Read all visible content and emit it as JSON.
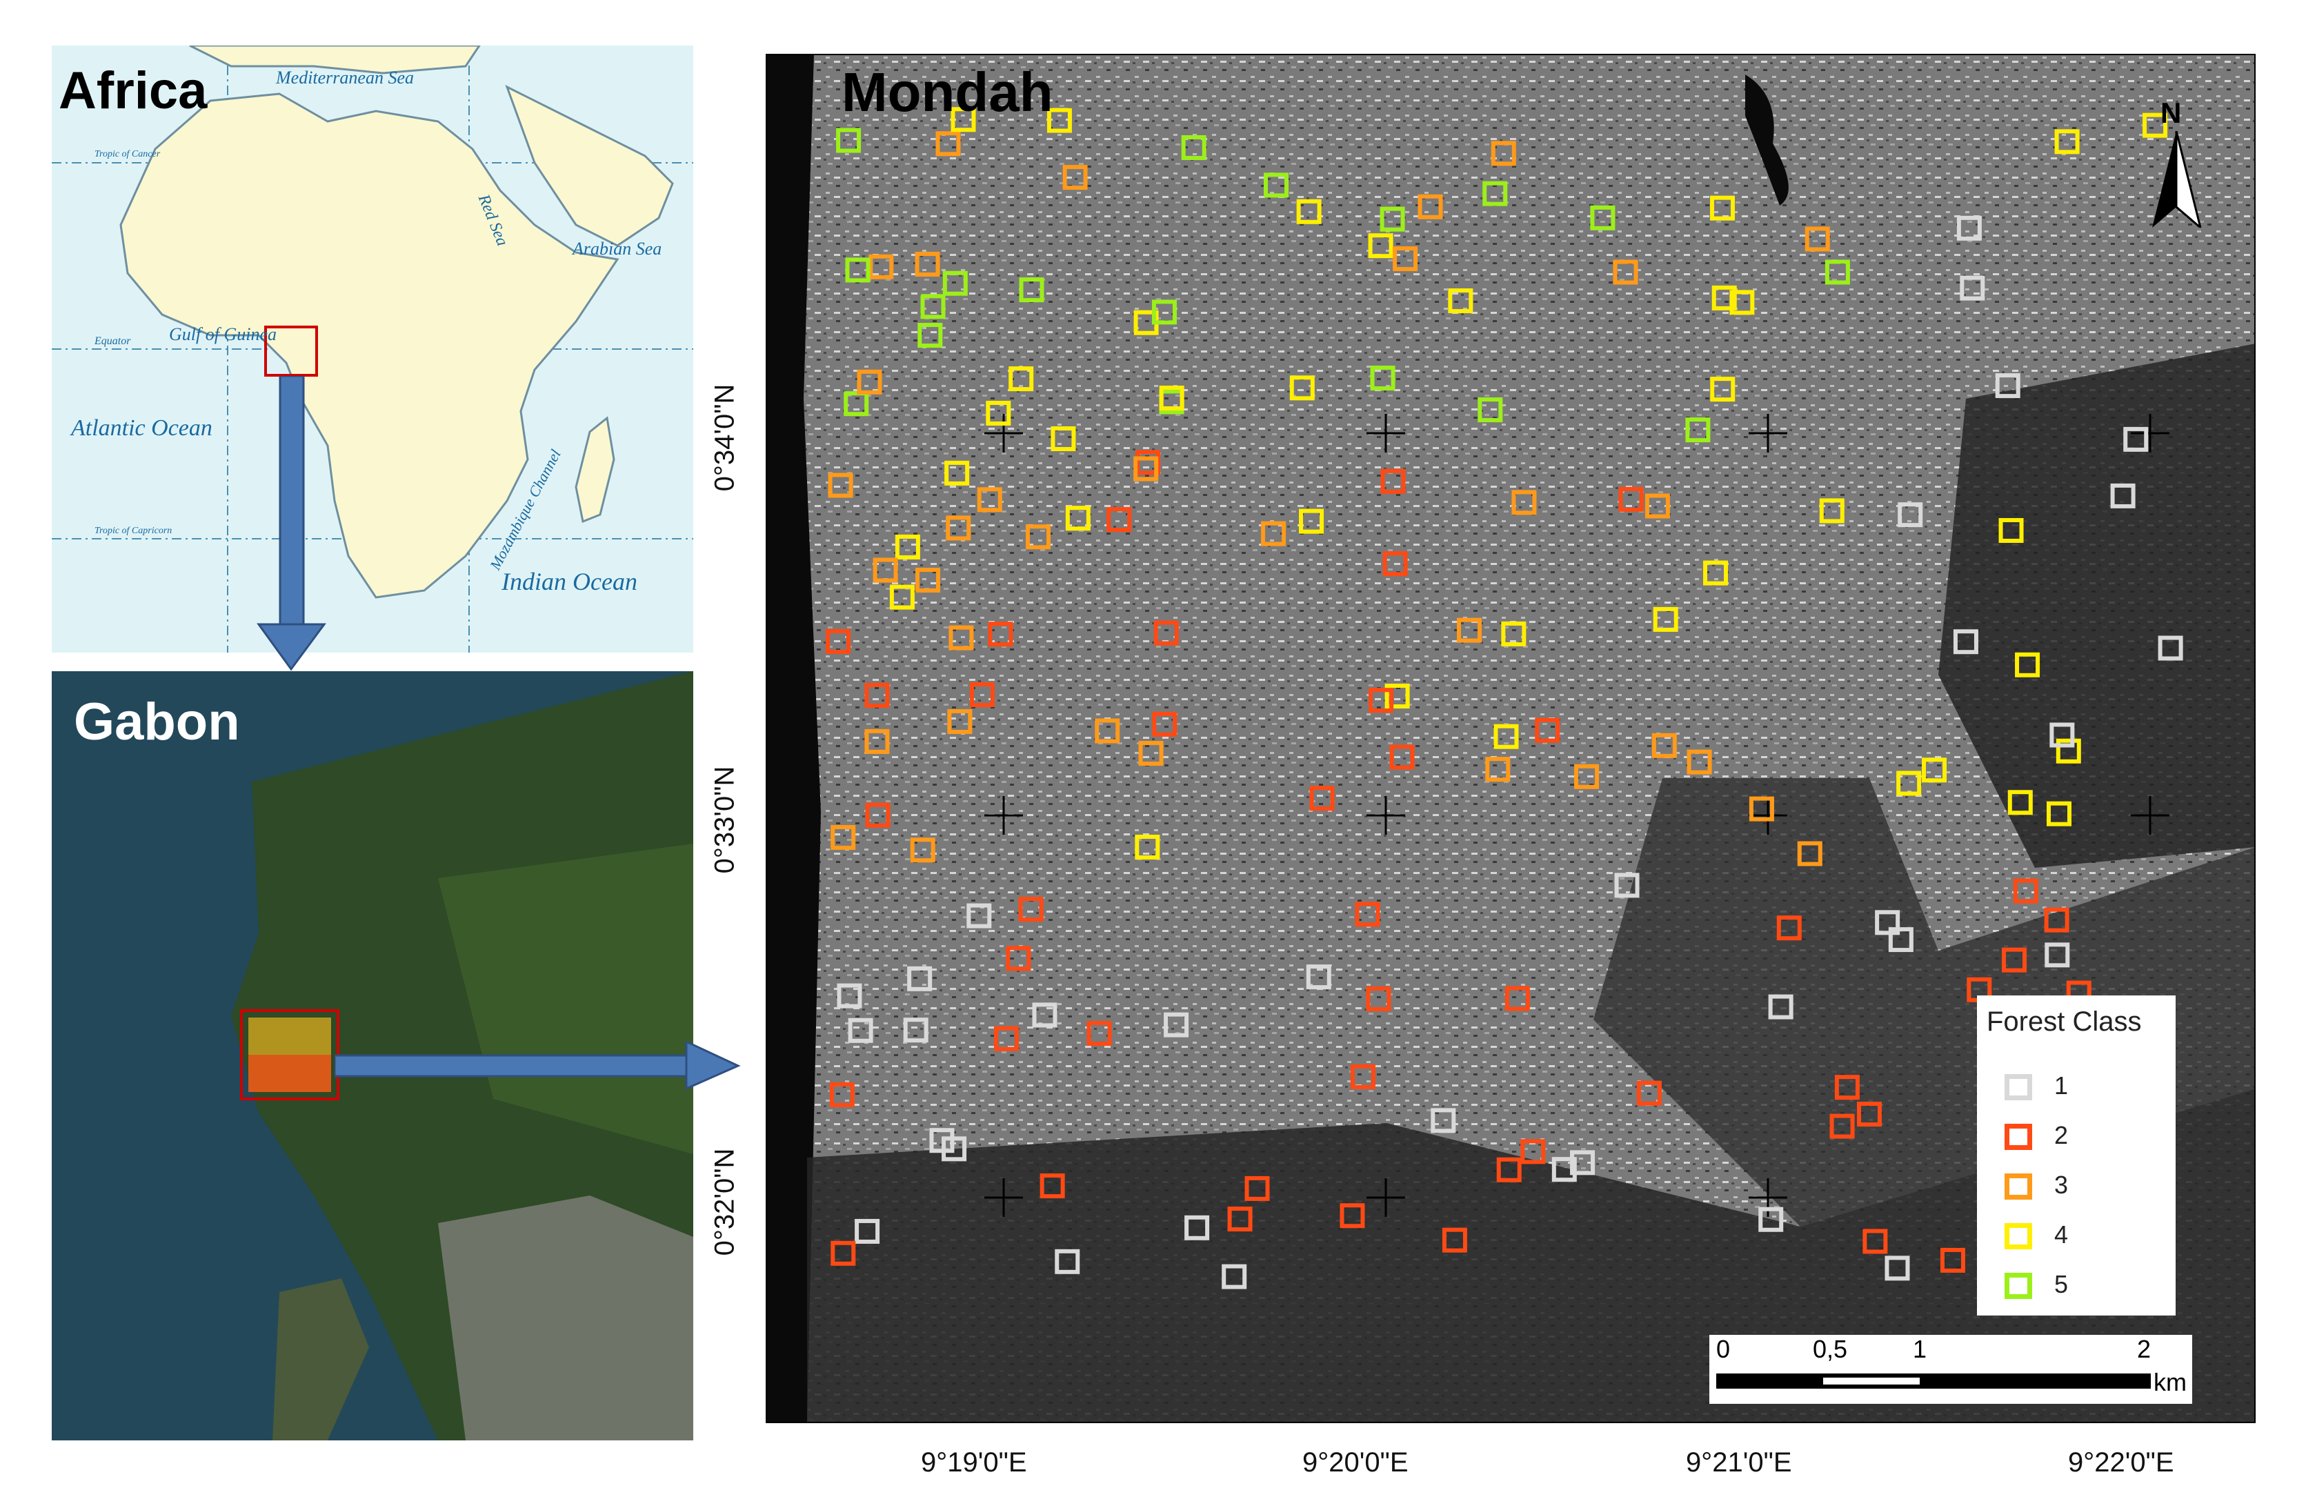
{
  "africa_inset": {
    "title": "Africa",
    "labels": {
      "mediterranean": "Mediterranean Sea",
      "red_sea": "Red Sea",
      "arabian_sea": "Arabian Sea",
      "gulf_of_guinea": "Gulf of Guinea",
      "equator": "Equator",
      "atlantic": "Atlantic Ocean",
      "indian": "Indian Ocean",
      "mozambique": "Mozambique Channel",
      "tropic_cancer": "Tropic of Cancer",
      "tropic_capricorn": "Tropic of Capricorn"
    }
  },
  "gabon_inset": {
    "title": "Gabon"
  },
  "mondah_map": {
    "title": "Mondah",
    "x_ticks": [
      "9°19'0\"E",
      "9°20'0\"E",
      "9°21'0\"E",
      "9°22'0\"E"
    ],
    "y_ticks": [
      "0°34'0\"N",
      "0°33'0\"N",
      "0°32'0\"N"
    ],
    "north_label": "N",
    "legend": {
      "title": "Forest Class",
      "items": [
        {
          "label": "1",
          "color": "#d9d9d9"
        },
        {
          "label": "2",
          "color": "#ff4a14"
        },
        {
          "label": "3",
          "color": "#ff9a1a"
        },
        {
          "label": "4",
          "color": "#ffef00"
        },
        {
          "label": "5",
          "color": "#9cef1a"
        }
      ]
    },
    "scale_bar": {
      "ticks": [
        "0",
        "0,5",
        "1",
        "2"
      ],
      "unit": "km"
    }
  }
}
